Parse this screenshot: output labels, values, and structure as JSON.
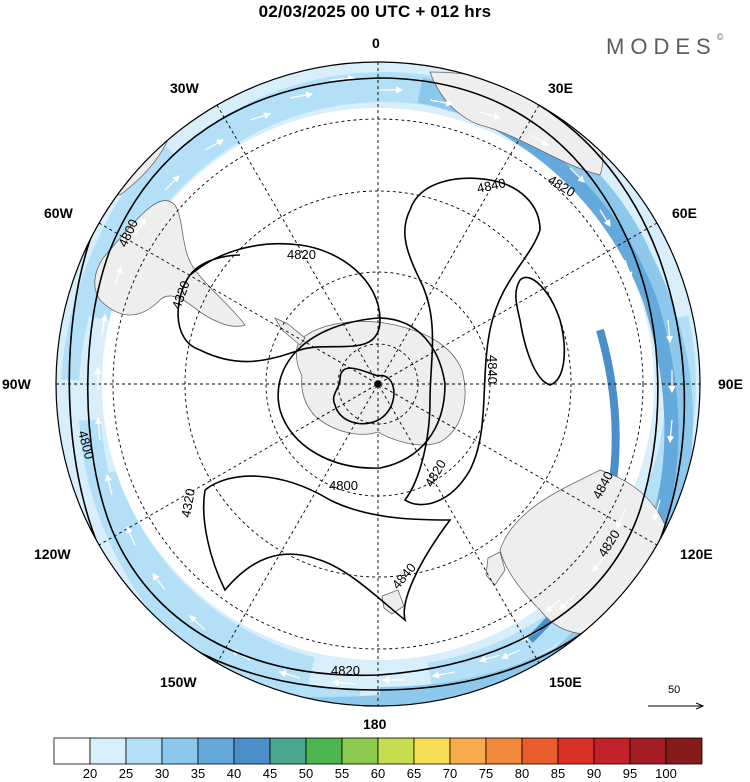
{
  "title": "02/03/2025  00 UTC  + 012 hrs",
  "brand": "MODES",
  "brand_mark": "©",
  "meridian_labels": {
    "lon0": "0",
    "lon30e": "30E",
    "lon60e": "60E",
    "lon90e": "90E",
    "lon120e": "120E",
    "lon150e": "150E",
    "lon180": "180",
    "lon150w": "150W",
    "lon120w": "120W",
    "lon90w": "90W",
    "lon60w": "60W",
    "lon30w": "30W"
  },
  "contour_labels": [
    "4840",
    "4820",
    "4820",
    "4320",
    "4800",
    "4840",
    "4800",
    "4820",
    "4840",
    "4820",
    "4320",
    "4800",
    "4840",
    "4820"
  ],
  "vector_reference": "50",
  "colorbar": {
    "labels": [
      "20",
      "25",
      "30",
      "35",
      "40",
      "45",
      "50",
      "55",
      "60",
      "65",
      "70",
      "75",
      "80",
      "85",
      "90",
      "95",
      "100"
    ],
    "colors": [
      "#ffffff",
      "#d8effb",
      "#b4e0f7",
      "#8cc8ec",
      "#64a9dc",
      "#4a8fc9",
      "#48a58e",
      "#4cb54f",
      "#8cc94f",
      "#c7dc4f",
      "#f7de55",
      "#f7ab4c",
      "#f28a3c",
      "#ea5b2e",
      "#dc3127",
      "#c4222a",
      "#a51d24",
      "#861b1c"
    ]
  }
}
